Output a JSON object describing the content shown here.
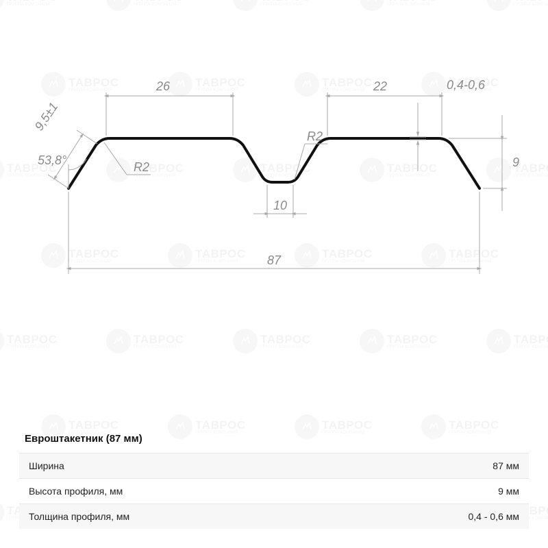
{
  "watermark": {
    "text": "ТАВРОС",
    "sub": "ГРУППА КОМПАНИЙ"
  },
  "diagram": {
    "dims": {
      "top_flat_left": "26",
      "top_flat_right": "22",
      "thickness": "0,4-0,6",
      "side_len": "9,5±1",
      "angle": "53,8°",
      "radius_left": "R2",
      "radius_center": "R2",
      "valley_width": "10",
      "total_width": "87",
      "height_right": "9"
    },
    "colors": {
      "profile": "#111111",
      "dim": "#8a8a8a",
      "dim_line": "#a8a8a8",
      "bg": "#ffffff"
    },
    "stroke_width_profile": 4,
    "stroke_width_dim": 1,
    "font_size_dim": 18
  },
  "table": {
    "title": "Евроштакетник (87 мм)",
    "rows": [
      {
        "label": "Ширина",
        "value": "87 мм"
      },
      {
        "label": "Высота профиля, мм",
        "value": "9 мм"
      },
      {
        "label": "Толщина профиля, мм",
        "value": "0,4 - 0,6 мм"
      }
    ]
  }
}
